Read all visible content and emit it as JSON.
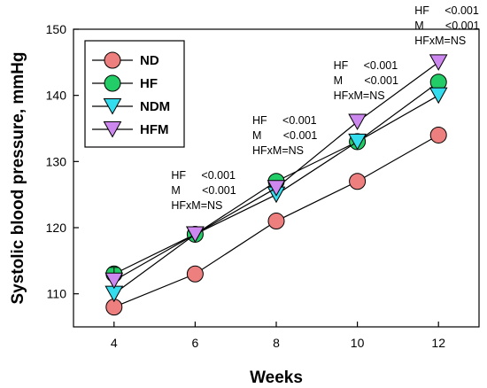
{
  "chart_data": {
    "type": "line",
    "xlabel": "Weeks",
    "ylabel": "Systolic blood pressure, mmHg",
    "x": [
      4,
      6,
      8,
      10,
      12
    ],
    "xlim": [
      3,
      13
    ],
    "ylim": [
      105,
      150
    ],
    "xticks": [
      4,
      6,
      8,
      10,
      12
    ],
    "yticks": [
      110,
      120,
      130,
      140,
      150
    ],
    "grid": false,
    "legend_position": "top-left",
    "series": [
      {
        "name": "ND",
        "values": [
          108,
          113,
          121,
          127,
          134
        ],
        "marker": "circle",
        "color": "#ee7f7f",
        "errors": [
          0,
          0,
          0,
          0,
          0
        ]
      },
      {
        "name": "HF",
        "values": [
          113,
          119,
          127,
          133,
          142
        ],
        "marker": "circle",
        "color": "#22cc66",
        "errors": [
          0.8,
          0.3,
          0.3,
          0.5,
          0.5
        ]
      },
      {
        "name": "NDM",
        "values": [
          110,
          119,
          125,
          133,
          140
        ],
        "marker": "triangle-down",
        "color": "#33ddee",
        "errors": [
          0.5,
          0,
          0,
          0.4,
          0.3
        ]
      },
      {
        "name": "HFM",
        "values": [
          112,
          119,
          126,
          136,
          145
        ],
        "marker": "triangle-down",
        "color": "#cc88ee",
        "errors": [
          2,
          0.3,
          0.5,
          0.4,
          0.3
        ]
      }
    ],
    "annotations": [
      {
        "x": 6,
        "lines": [
          "HF     <0.001",
          "M       <0.001",
          "HFxM=NS"
        ]
      },
      {
        "x": 8,
        "lines": [
          "HF     <0.001",
          "M       <0.001",
          "HFxM=NS"
        ]
      },
      {
        "x": 10,
        "lines": [
          "HF     <0.001",
          "M       <0.001",
          "HFxM=NS"
        ]
      },
      {
        "x": 12,
        "lines": [
          "HF     <0.001",
          "M       <0.001",
          "HFxM=NS"
        ]
      }
    ]
  }
}
